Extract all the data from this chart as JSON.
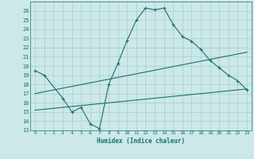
{
  "title": "",
  "xlabel": "Humidex (Indice chaleur)",
  "ylabel": "",
  "xlim": [
    -0.5,
    23.5
  ],
  "ylim": [
    13,
    27
  ],
  "yticks": [
    13,
    14,
    15,
    16,
    17,
    18,
    19,
    20,
    21,
    22,
    23,
    24,
    25,
    26
  ],
  "xticks": [
    0,
    1,
    2,
    3,
    4,
    5,
    6,
    7,
    8,
    9,
    10,
    11,
    12,
    13,
    14,
    15,
    16,
    17,
    18,
    19,
    20,
    21,
    22,
    23
  ],
  "bg_color": "#cce8e8",
  "line_color": "#1a7070",
  "grid_color": "#aacccc",
  "line1_x": [
    0,
    1,
    3,
    4,
    5,
    6,
    7,
    8,
    9,
    10,
    11,
    12,
    13,
    14,
    15,
    16,
    17,
    18,
    19,
    20,
    21,
    22,
    23
  ],
  "line1_y": [
    19.5,
    19.0,
    16.5,
    15.0,
    15.5,
    13.7,
    13.2,
    18.0,
    20.3,
    22.8,
    25.0,
    26.3,
    26.1,
    26.3,
    24.5,
    23.2,
    22.7,
    21.8,
    20.6,
    19.8,
    19.0,
    18.4,
    17.4
  ],
  "line2_x": [
    0,
    23
  ],
  "line2_y": [
    17.0,
    21.5
  ],
  "line3_x": [
    0,
    23
  ],
  "line3_y": [
    15.2,
    17.5
  ],
  "figsize": [
    3.2,
    2.0
  ],
  "dpi": 100
}
